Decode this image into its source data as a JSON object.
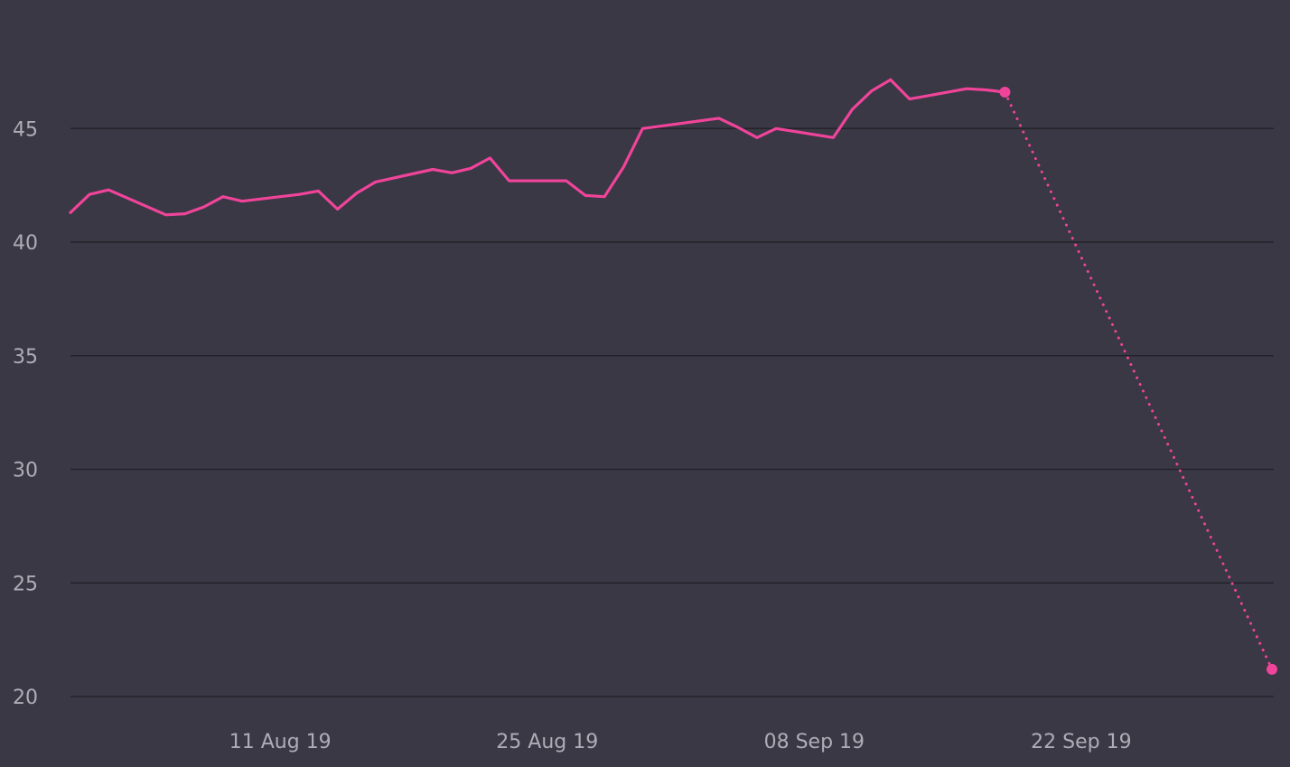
{
  "chart_data": {
    "type": "line",
    "title": "",
    "xlabel": "",
    "ylabel": "",
    "ylim": [
      20,
      48.5
    ],
    "xlim": [
      "2019-07-31",
      "2019-10-03"
    ],
    "grid": true,
    "y_ticks": [
      {
        "value": 20,
        "label": "20"
      },
      {
        "value": 25,
        "label": "25"
      },
      {
        "value": 30,
        "label": "30"
      },
      {
        "value": 35,
        "label": "35"
      },
      {
        "value": 40,
        "label": "40"
      },
      {
        "value": 45,
        "label": "45"
      }
    ],
    "x_ticks": [
      {
        "date": "2019-08-11",
        "label": "11 Aug 19"
      },
      {
        "date": "2019-08-25",
        "label": "25 Aug 19"
      },
      {
        "date": "2019-09-08",
        "label": "08 Sep 19"
      },
      {
        "date": "2019-09-22",
        "label": "22 Sep 19"
      }
    ],
    "color": "#f0449a",
    "series": [
      {
        "style": "solid",
        "points": [
          {
            "x": "2019-07-31",
            "y": 41.3
          },
          {
            "x": "2019-08-01",
            "y": 42.1
          },
          {
            "x": "2019-08-02",
            "y": 42.3
          },
          {
            "x": "2019-08-05",
            "y": 41.2
          },
          {
            "x": "2019-08-06",
            "y": 41.25
          },
          {
            "x": "2019-08-07",
            "y": 41.55
          },
          {
            "x": "2019-08-08",
            "y": 42.0
          },
          {
            "x": "2019-08-09",
            "y": 41.8
          },
          {
            "x": "2019-08-12",
            "y": 42.1
          },
          {
            "x": "2019-08-13",
            "y": 42.25
          },
          {
            "x": "2019-08-14",
            "y": 41.45
          },
          {
            "x": "2019-08-15",
            "y": 42.15
          },
          {
            "x": "2019-08-16",
            "y": 42.65
          },
          {
            "x": "2019-08-19",
            "y": 43.2
          },
          {
            "x": "2019-08-20",
            "y": 43.05
          },
          {
            "x": "2019-08-21",
            "y": 43.25
          },
          {
            "x": "2019-08-22",
            "y": 43.7
          },
          {
            "x": "2019-08-23",
            "y": 42.7
          },
          {
            "x": "2019-08-26",
            "y": 42.7
          },
          {
            "x": "2019-08-27",
            "y": 42.05
          },
          {
            "x": "2019-08-28",
            "y": 42.0
          },
          {
            "x": "2019-08-29",
            "y": 43.3
          },
          {
            "x": "2019-08-30",
            "y": 45.0
          },
          {
            "x": "2019-09-03",
            "y": 45.45
          },
          {
            "x": "2019-09-04",
            "y": 45.05
          },
          {
            "x": "2019-09-05",
            "y": 44.6
          },
          {
            "x": "2019-09-06",
            "y": 45.0
          },
          {
            "x": "2019-09-09",
            "y": 44.6
          },
          {
            "x": "2019-09-10",
            "y": 45.85
          },
          {
            "x": "2019-09-11",
            "y": 46.65
          },
          {
            "x": "2019-09-12",
            "y": 47.15
          },
          {
            "x": "2019-09-13",
            "y": 46.3
          },
          {
            "x": "2019-09-16",
            "y": 46.75
          },
          {
            "x": "2019-09-17",
            "y": 46.7
          },
          {
            "x": "2019-09-18",
            "y": 46.6
          }
        ]
      },
      {
        "style": "dotted",
        "points": [
          {
            "x": "2019-09-18",
            "y": 46.6
          },
          {
            "x": "2019-10-02",
            "y": 21.2
          }
        ]
      }
    ],
    "markers": [
      {
        "x": "2019-09-18",
        "y": 46.6
      },
      {
        "x": "2019-10-02",
        "y": 21.2
      }
    ]
  }
}
